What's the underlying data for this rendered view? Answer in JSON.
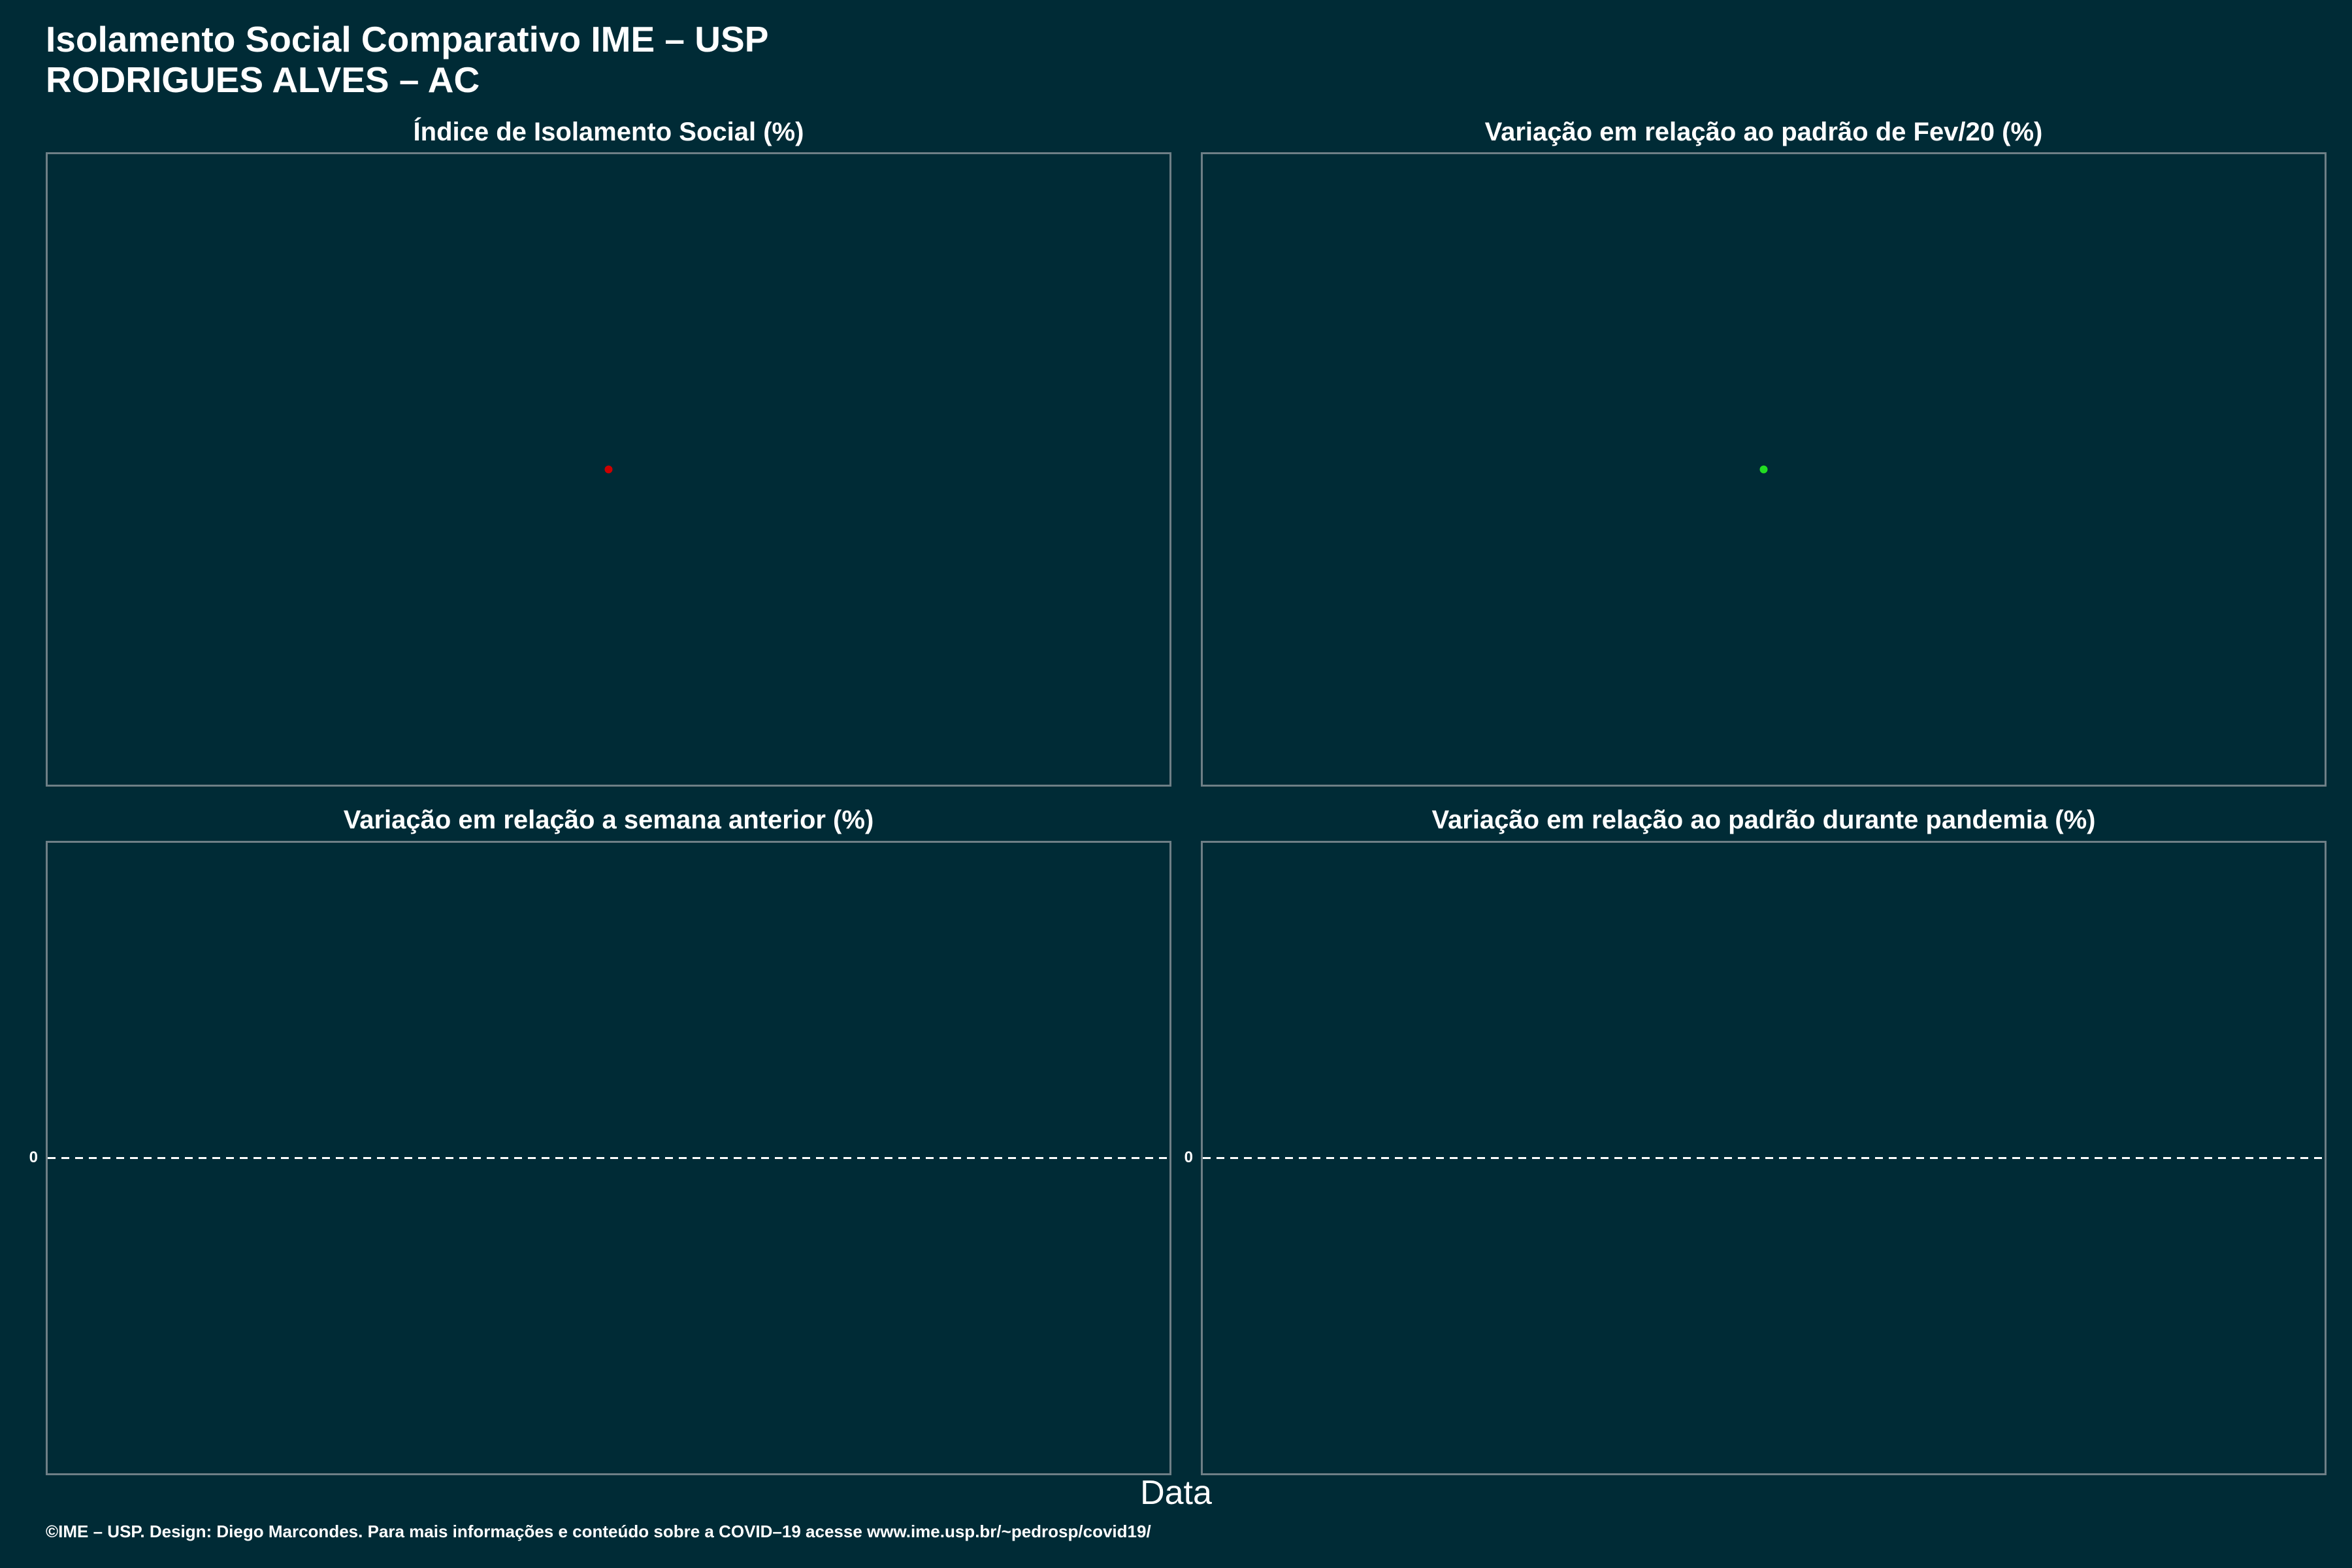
{
  "title_line1": "Isolamento Social Comparativo IME – USP",
  "title_line2": "RODRIGUES ALVES – AC",
  "xlabel": "Data",
  "caption": "©IME – USP. Design: Diego Marcondes. Para mais informações e conteúdo sobre a COVID–19 acesse www.ime.usp.br/~pedrosp/covid19/",
  "colors": {
    "background": "#002b36",
    "panel_border": "#6e7f86",
    "text": "#ffffff",
    "point_isolation": "#cc0000",
    "point_feb_variation": "#22dd22",
    "zero_line": "#ffffff"
  },
  "chart_data": [
    {
      "type": "scatter",
      "title": "Índice de Isolamento Social (%)",
      "series": [
        {
          "points": [
            {
              "x": 0.5,
              "y": 0.5
            }
          ],
          "color": "#cc0000"
        }
      ],
      "xlim": [
        0,
        1
      ],
      "ylim": [
        0,
        1
      ],
      "yticks": [],
      "grid": false
    },
    {
      "type": "scatter",
      "title": "Variação em relação ao padrão de Fev/20 (%)",
      "series": [
        {
          "points": [
            {
              "x": 0.5,
              "y": 0.5
            }
          ],
          "color": "#22dd22"
        }
      ],
      "xlim": [
        0,
        1
      ],
      "ylim": [
        0,
        1
      ],
      "yticks": [],
      "grid": false
    },
    {
      "type": "line",
      "title": "Variação em relação a semana anterior (%)",
      "series": [],
      "reference_line": {
        "y": 0,
        "style": "dashed"
      },
      "xlim": [
        0,
        1
      ],
      "ylim": [
        -1,
        1
      ],
      "yticks": [
        0
      ],
      "yticklabels": [
        "0"
      ],
      "grid": false
    },
    {
      "type": "line",
      "title": "Variação em relação ao padrão durante pandemia (%)",
      "series": [],
      "reference_line": {
        "y": 0,
        "style": "dashed"
      },
      "xlim": [
        0,
        1
      ],
      "ylim": [
        -1,
        1
      ],
      "yticks": [
        0
      ],
      "yticklabels": [
        "0"
      ],
      "grid": false
    }
  ]
}
